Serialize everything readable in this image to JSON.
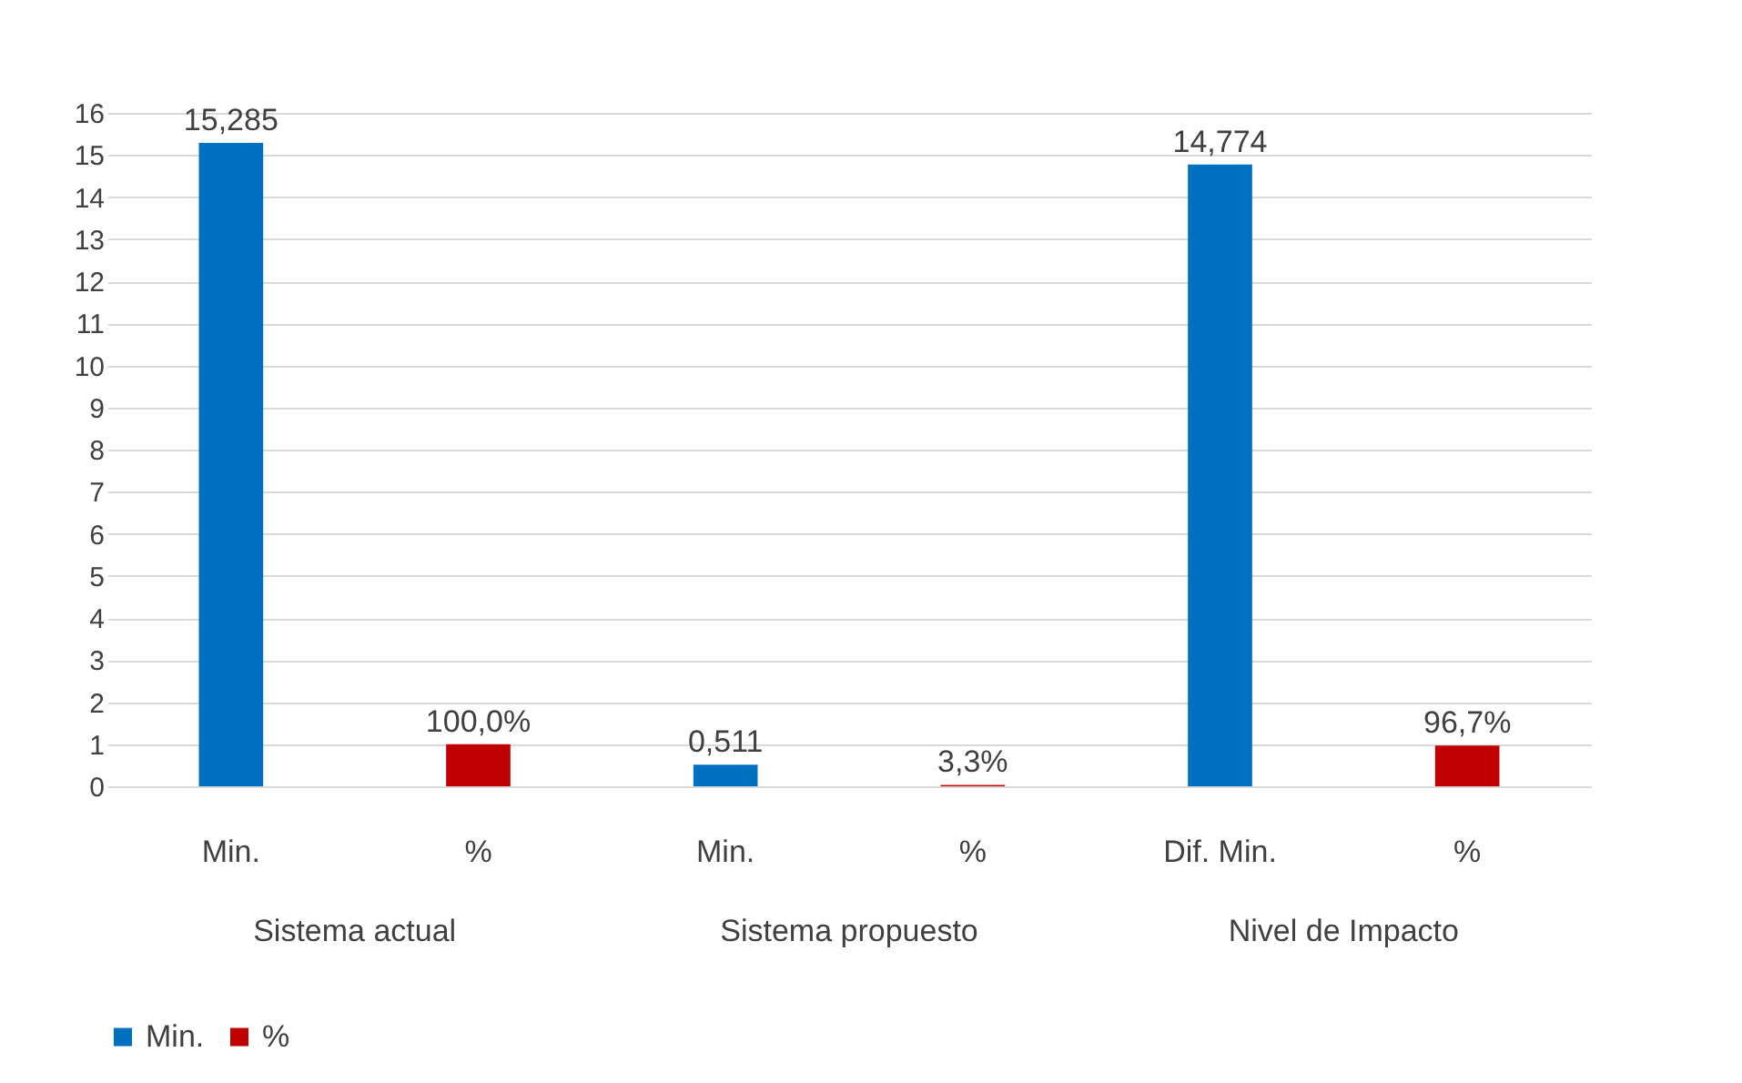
{
  "chart_data": {
    "type": "bar",
    "categories": [
      "Min.",
      "%",
      "Min.",
      "%",
      "Dif. Min.",
      "%"
    ],
    "series": [
      {
        "name": "Min.",
        "color": "#0070c0",
        "values": [
          15.285,
          null,
          0.511,
          null,
          14.774,
          null
        ],
        "value_labels": [
          "15,285",
          null,
          "0,511",
          null,
          "14,774",
          null
        ]
      },
      {
        "name": "%",
        "color": "#c00000",
        "values": [
          null,
          1,
          null,
          0.033,
          null,
          0.967
        ],
        "value_labels": [
          null,
          "100,0%",
          null,
          "3,3%",
          null,
          "96,7%"
        ]
      }
    ],
    "annotations": [
      "Sistema actual",
      "Sistema propuesto",
      "Nivel de Impacto"
    ],
    "ylim": [
      0,
      16
    ],
    "yticks": [
      0,
      1,
      2,
      3,
      4,
      5,
      6,
      7,
      8,
      9,
      10,
      11,
      12,
      13,
      14,
      15,
      16
    ],
    "grid": "y",
    "legend": "bottom"
  }
}
